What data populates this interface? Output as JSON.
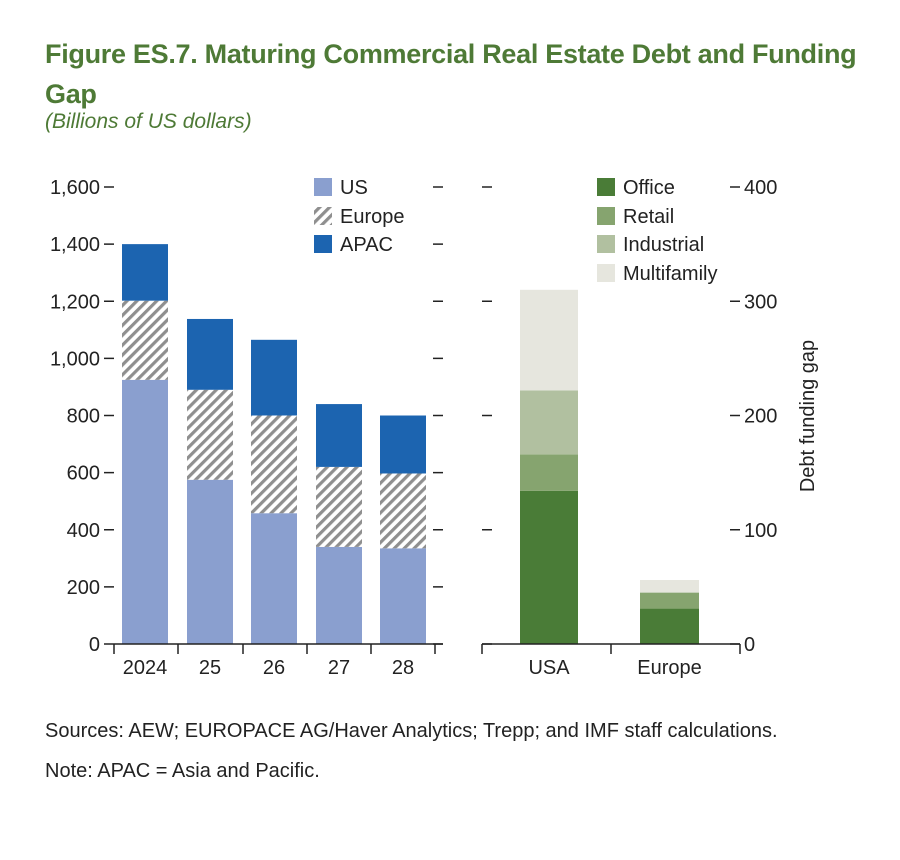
{
  "title": "Figure ES.7. Maturing Commercial Real Estate Debt and Funding Gap",
  "subtitle": "(Billions of US dollars)",
  "colors": {
    "us": "#8a9fcf",
    "europe_stripe": "#8f8f8f",
    "apac": "#1c64b0",
    "office": "#4a7c37",
    "retail": "#86a46f",
    "industrial": "#b1c0a0",
    "multifamily": "#e6e6de"
  },
  "chart_data": [
    {
      "type": "bar",
      "stacked": true,
      "title": "",
      "categories": [
        "2024",
        "25",
        "26",
        "27",
        "28"
      ],
      "series": [
        {
          "name": "US",
          "values": [
            925,
            575,
            458,
            340,
            335
          ]
        },
        {
          "name": "Europe",
          "values": [
            277,
            315,
            342,
            280,
            262
          ]
        },
        {
          "name": "APAC",
          "values": [
            198,
            248,
            265,
            220,
            203
          ]
        }
      ],
      "ylim": [
        0,
        1600
      ],
      "yticks": [
        "0",
        "200",
        "400",
        "600",
        "800",
        "1,000",
        "1,200",
        "1,400",
        "1,600"
      ],
      "ytick_values": [
        0,
        200,
        400,
        600,
        800,
        1000,
        1200,
        1400,
        1600
      ],
      "legend_position": "top-right"
    },
    {
      "type": "bar",
      "stacked": true,
      "title": "",
      "categories": [
        "USA",
        "Europe"
      ],
      "series": [
        {
          "name": "Office",
          "values": [
            134,
            31
          ]
        },
        {
          "name": "Retail",
          "values": [
            32,
            14
          ]
        },
        {
          "name": "Industrial",
          "values": [
            56,
            0
          ]
        },
        {
          "name": "Multifamily",
          "values": [
            88,
            11
          ]
        }
      ],
      "ylim": [
        0,
        400
      ],
      "ylabel": "Debt funding gap",
      "yticks": [
        "0",
        "100",
        "200",
        "300",
        "400"
      ],
      "ytick_values": [
        0,
        100,
        200,
        300,
        400
      ],
      "legend_position": "top-right"
    }
  ],
  "sources": "Sources: AEW; EUROPACE AG/Haver Analytics; Trepp; and IMF staff calculations.",
  "note": "Note: APAC = Asia and Pacific."
}
